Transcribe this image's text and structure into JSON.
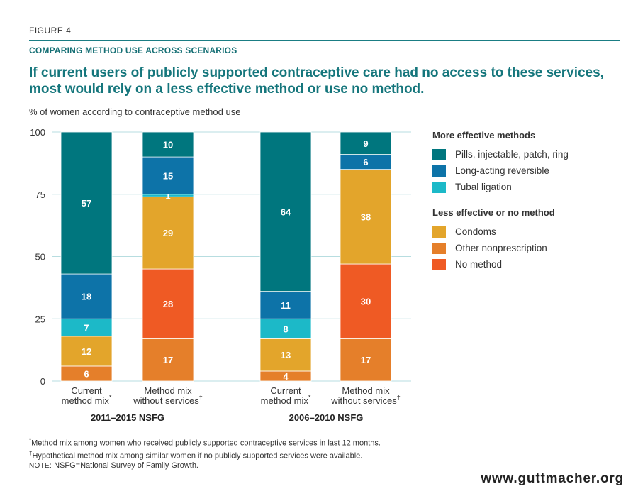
{
  "figure_label": "FIGURE 4",
  "subhead": "COMPARING METHOD USE ACROSS SCENARIOS",
  "headline": "If current users of publicly supported contraceptive care had no access to these services, most would rely on a less effective method or use no method.",
  "y_axis_label": "% of women according to contraceptive method use",
  "legend": {
    "group1_title": "More effective methods",
    "group2_title": "Less effective or no method"
  },
  "colors": {
    "pills": "#00767e",
    "larc": "#0d73a8",
    "tubal": "#1cb9c8",
    "condoms": "#e3a52b",
    "other": "#e57f2a",
    "none": "#ef5a24",
    "grid": "#b7dde0",
    "headline": "#15767c"
  },
  "chart_data": {
    "type": "bar",
    "stacked": true,
    "ylim": [
      0,
      100
    ],
    "yticks": [
      "0",
      "25",
      "50",
      "75",
      "100"
    ],
    "series": [
      {
        "key": "other",
        "name": "Other nonprescription",
        "values": [
          6,
          17,
          4,
          17
        ]
      },
      {
        "key": "none",
        "name": "No method",
        "values": [
          0,
          28,
          0,
          30
        ]
      },
      {
        "key": "condoms",
        "name": "Condoms",
        "values": [
          12,
          29,
          13,
          38
        ]
      },
      {
        "key": "tubal",
        "name": "Tubal ligation",
        "values": [
          7,
          1,
          8,
          0
        ]
      },
      {
        "key": "larc",
        "name": "Long-acting reversible",
        "values": [
          18,
          15,
          11,
          6
        ]
      },
      {
        "key": "pills",
        "name": "Pills, injectable, patch, ring",
        "values": [
          57,
          10,
          64,
          9
        ]
      }
    ],
    "legend_order_group1": [
      "pills",
      "larc",
      "tubal"
    ],
    "legend_order_group2": [
      "condoms",
      "other",
      "none"
    ],
    "categories": [
      {
        "line1": "Current",
        "line2": "method mix",
        "mark": "*"
      },
      {
        "line1": "Method mix",
        "line2": "without services",
        "mark": "†"
      },
      {
        "line1": "Current",
        "line2": "method mix",
        "mark": "*"
      },
      {
        "line1": "Method mix",
        "line2": "without services",
        "mark": "†"
      }
    ],
    "groups": [
      "2011–2015 NSFG",
      "2006–2010 NSFG"
    ]
  },
  "footnotes": {
    "star_mark": "*",
    "star_text": "Method mix among women who received publicly supported contraceptive services in last 12 months.",
    "dagger_mark": "†",
    "dagger_text": "Hypothetical method mix among similar women if no publicly supported services were available.",
    "note_label": "NOTE:",
    "note_text": " NSFG=National Survey of Family Growth."
  },
  "brand": "www.guttmacher.org"
}
